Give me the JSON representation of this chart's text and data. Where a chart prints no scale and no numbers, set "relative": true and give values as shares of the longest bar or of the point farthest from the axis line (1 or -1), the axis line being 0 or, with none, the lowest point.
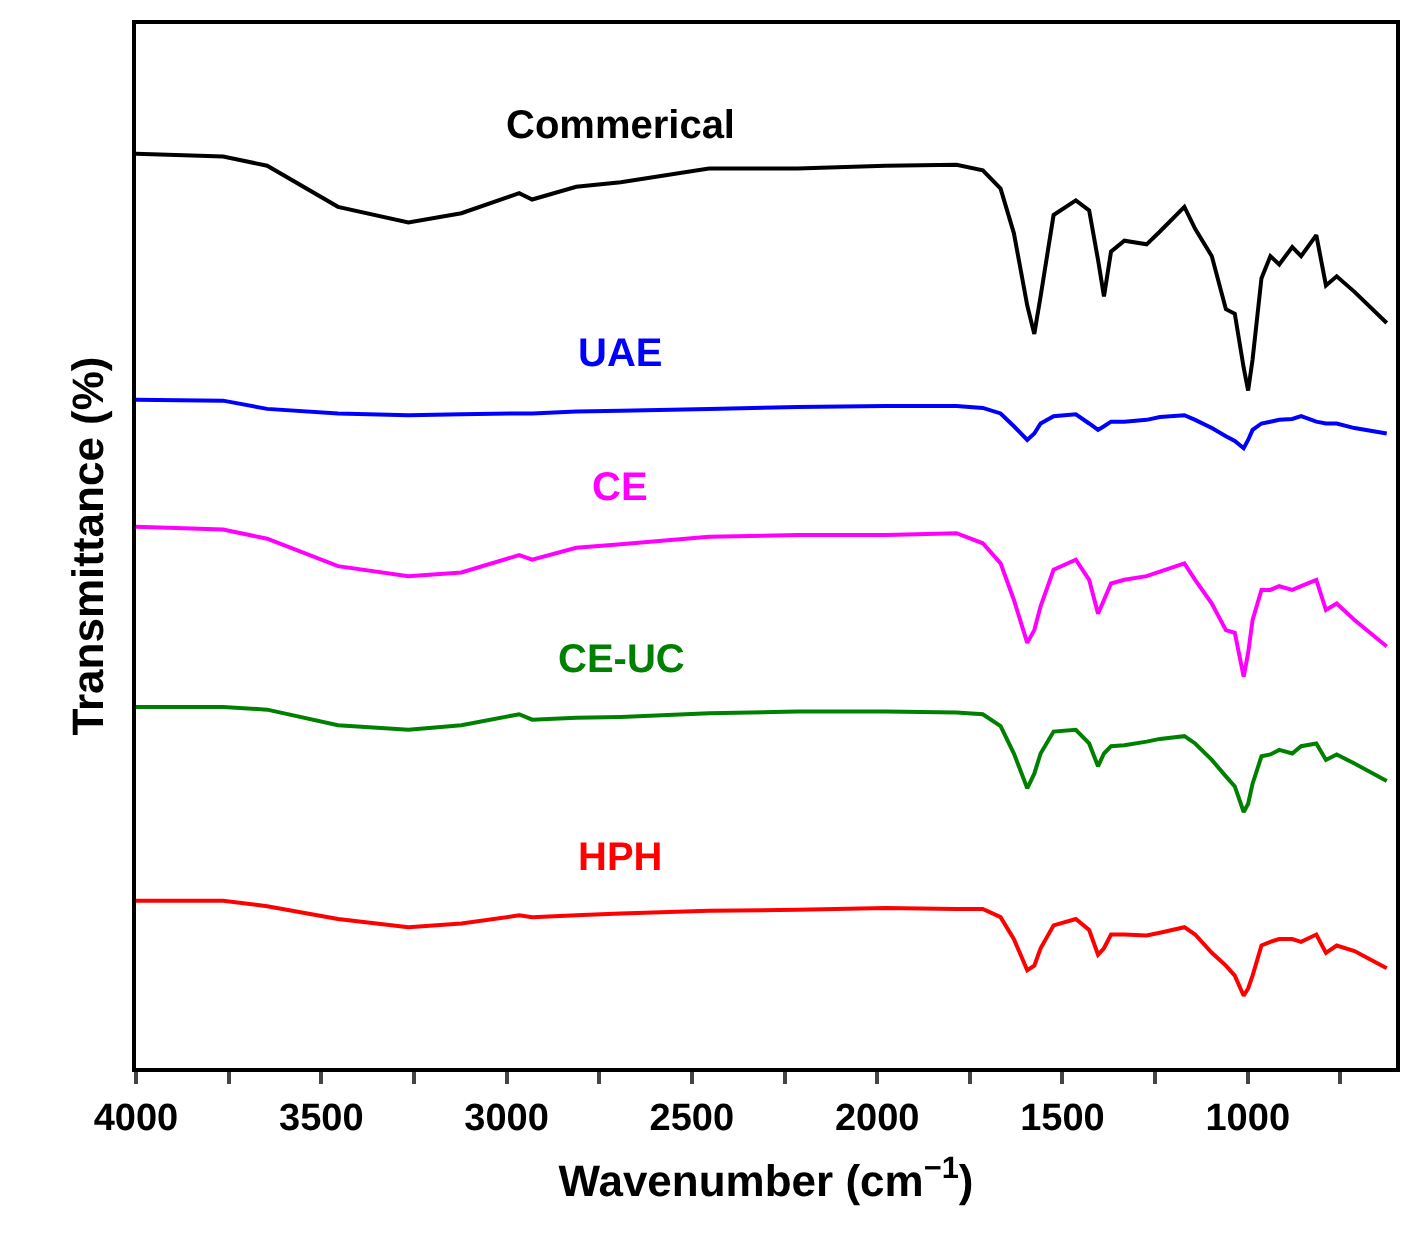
{
  "chart_data": {
    "type": "line",
    "relative": true,
    "xlabel": "Wavenumber (cm$^{−1}$)",
    "ylabel": "Transmittance (%)",
    "x": [
      4000,
      3765,
      3646,
      3455,
      3265,
      3122,
      2966,
      2931,
      2812,
      2692,
      2454,
      2215,
      1977,
      1786,
      1715,
      1667,
      1631,
      1595,
      1576,
      1559,
      1524,
      1464,
      1428,
      1404,
      1388,
      1369,
      1333,
      1273,
      1237,
      1171,
      1142,
      1097,
      1059,
      1035,
      1011,
      999,
      987,
      963,
      939,
      915,
      880,
      856,
      815,
      789,
      760,
      712,
      625
    ],
    "xlim": [
      4000,
      600
    ],
    "xticks": [
      4000,
      {
        "value": 3750,
        "label": null
      },
      3500,
      {
        "value": 3250,
        "label": null
      },
      3000,
      {
        "value": 2750,
        "label": null
      },
      2500,
      {
        "value": 2250,
        "label": null
      },
      2000,
      {
        "value": 1750,
        "label": null
      },
      1500,
      {
        "value": 1250,
        "label": null
      },
      1000,
      {
        "value": 750,
        "label": null
      }
    ],
    "legend": false,
    "marker": "none",
    "line_style": "solid",
    "series": [
      {
        "name": "Commerical",
        "color": "#000000",
        "values": [
          1.0,
          0.997,
          0.987,
          0.942,
          0.925,
          0.935,
          0.957,
          0.95,
          0.964,
          0.969,
          0.984,
          0.984,
          0.987,
          0.988,
          0.982,
          0.962,
          0.913,
          0.834,
          0.803,
          0.844,
          0.933,
          0.949,
          0.938,
          0.884,
          0.844,
          0.893,
          0.905,
          0.901,
          0.915,
          0.942,
          0.918,
          0.888,
          0.83,
          0.825,
          0.766,
          0.741,
          0.775,
          0.864,
          0.888,
          0.879,
          0.898,
          0.888,
          0.911,
          0.856,
          0.866,
          0.849,
          0.815
        ]
      },
      {
        "name": "UAE",
        "color": "#0000ff",
        "values": [
          0.731,
          0.73,
          0.721,
          0.716,
          0.714,
          0.715,
          0.716,
          0.716,
          0.718,
          0.719,
          0.721,
          0.723,
          0.724,
          0.724,
          0.722,
          0.716,
          0.702,
          0.687,
          0.694,
          0.705,
          0.713,
          0.715,
          0.705,
          0.698,
          0.702,
          0.707,
          0.707,
          0.709,
          0.712,
          0.714,
          0.709,
          0.7,
          0.691,
          0.686,
          0.678,
          0.687,
          0.698,
          0.705,
          0.707,
          0.709,
          0.71,
          0.713,
          0.707,
          0.705,
          0.705,
          0.7,
          0.694
        ]
      },
      {
        "name": "CE",
        "color": "#ff00ff",
        "values": [
          0.592,
          0.589,
          0.579,
          0.549,
          0.538,
          0.542,
          0.561,
          0.556,
          0.569,
          0.573,
          0.581,
          0.583,
          0.583,
          0.585,
          0.574,
          0.552,
          0.512,
          0.465,
          0.479,
          0.505,
          0.545,
          0.556,
          0.534,
          0.497,
          0.512,
          0.53,
          0.534,
          0.538,
          0.543,
          0.552,
          0.534,
          0.508,
          0.479,
          0.476,
          0.428,
          0.454,
          0.49,
          0.523,
          0.523,
          0.527,
          0.523,
          0.527,
          0.534,
          0.501,
          0.508,
          0.49,
          0.461
        ]
      },
      {
        "name": "CE-UC",
        "color": "#008000",
        "values": [
          0.395,
          0.395,
          0.392,
          0.375,
          0.37,
          0.375,
          0.387,
          0.381,
          0.383,
          0.384,
          0.388,
          0.39,
          0.39,
          0.389,
          0.387,
          0.374,
          0.344,
          0.306,
          0.322,
          0.344,
          0.368,
          0.37,
          0.355,
          0.33,
          0.344,
          0.352,
          0.353,
          0.357,
          0.36,
          0.363,
          0.355,
          0.337,
          0.319,
          0.308,
          0.28,
          0.289,
          0.311,
          0.341,
          0.343,
          0.348,
          0.344,
          0.352,
          0.355,
          0.337,
          0.343,
          0.333,
          0.314
        ]
      },
      {
        "name": "HPH",
        "color": "#ff0000",
        "values": [
          0.183,
          0.183,
          0.177,
          0.163,
          0.154,
          0.158,
          0.167,
          0.165,
          0.167,
          0.169,
          0.172,
          0.173,
          0.175,
          0.174,
          0.174,
          0.165,
          0.141,
          0.107,
          0.112,
          0.131,
          0.156,
          0.163,
          0.151,
          0.124,
          0.131,
          0.146,
          0.146,
          0.145,
          0.148,
          0.154,
          0.146,
          0.126,
          0.112,
          0.101,
          0.079,
          0.087,
          0.101,
          0.134,
          0.138,
          0.141,
          0.141,
          0.138,
          0.146,
          0.126,
          0.134,
          0.128,
          0.109
        ]
      }
    ]
  }
}
